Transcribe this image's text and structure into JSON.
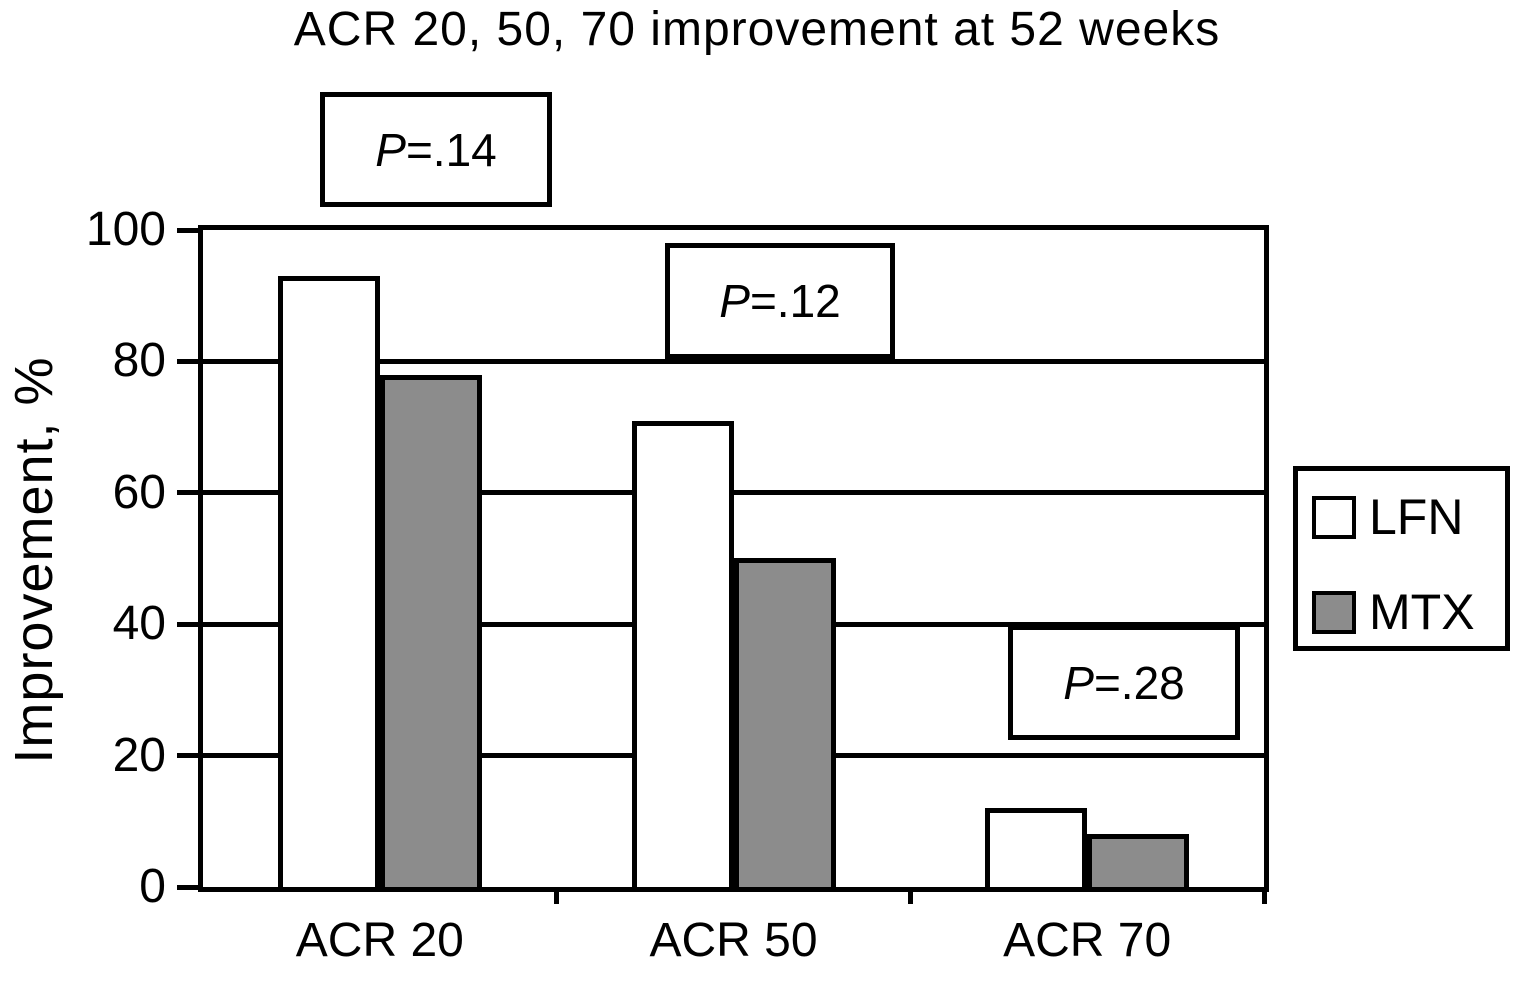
{
  "chart_data": {
    "type": "bar",
    "title": "ACR 20, 50, 70 improvement at 52 weeks",
    "xlabel": "",
    "ylabel": "Improvement, %",
    "categories": [
      "ACR 20",
      "ACR 50",
      "ACR 70"
    ],
    "series": [
      {
        "name": "LFN",
        "fill": "#ffffff",
        "values": [
          93,
          71,
          12
        ]
      },
      {
        "name": "MTX",
        "fill": "#8c8c8c",
        "values": [
          78,
          50,
          8
        ]
      }
    ],
    "ylim": [
      0,
      100
    ],
    "yticks": [
      0,
      20,
      40,
      60,
      80,
      100
    ],
    "grid": "horizontal",
    "legend_position": "right-outside",
    "annotations": [
      {
        "text": "P=.14",
        "p": "P",
        "value": "=.14",
        "category": "ACR 20"
      },
      {
        "text": "P=.12",
        "p": "P",
        "value": "=.12",
        "category": "ACR 50"
      },
      {
        "text": "P=.28",
        "p": "P",
        "value": "=.28",
        "category": "ACR 70"
      }
    ],
    "colors": {
      "stroke": "#000000",
      "lfn_fill": "#ffffff",
      "mtx_fill": "#8c8c8c",
      "background": "#ffffff"
    }
  }
}
